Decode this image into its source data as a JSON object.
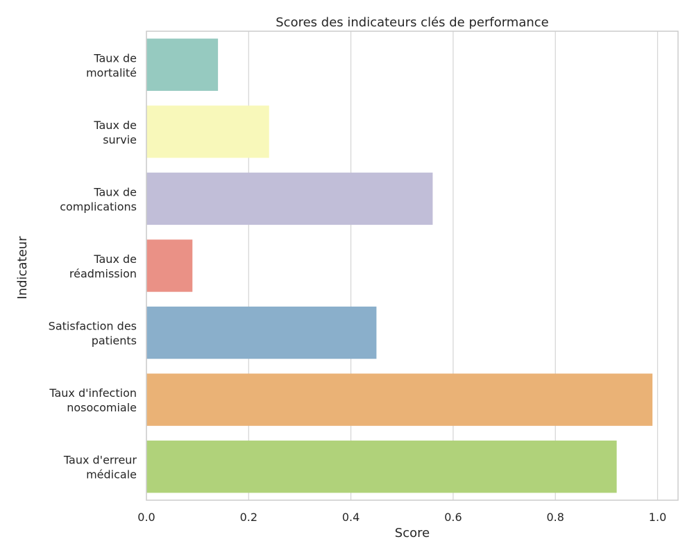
{
  "chart_data": {
    "type": "bar",
    "orientation": "horizontal",
    "title": "Scores des indicateurs clés de performance",
    "xlabel": "Score",
    "ylabel": "Indicateur",
    "xlim": [
      0,
      1.04
    ],
    "xticks": [
      "0.0",
      "0.2",
      "0.4",
      "0.6",
      "0.8",
      "1.0"
    ],
    "grid": true,
    "categories": [
      [
        "Taux de",
        "mortalité"
      ],
      [
        "Taux de",
        "survie"
      ],
      [
        "Taux de",
        "complications"
      ],
      [
        "Taux de",
        "réadmission"
      ],
      [
        "Satisfaction des",
        "patients"
      ],
      [
        "Taux d'infection",
        "nosocomiale"
      ],
      [
        "Taux d'erreur",
        "médicale"
      ]
    ],
    "values": [
      0.14,
      0.24,
      0.56,
      0.09,
      0.45,
      0.99,
      0.92
    ],
    "colors": [
      "#96cac0",
      "#f8f8ba",
      "#c1bed8",
      "#ea9186",
      "#8aafcb",
      "#eab276",
      "#b0d27a"
    ]
  }
}
